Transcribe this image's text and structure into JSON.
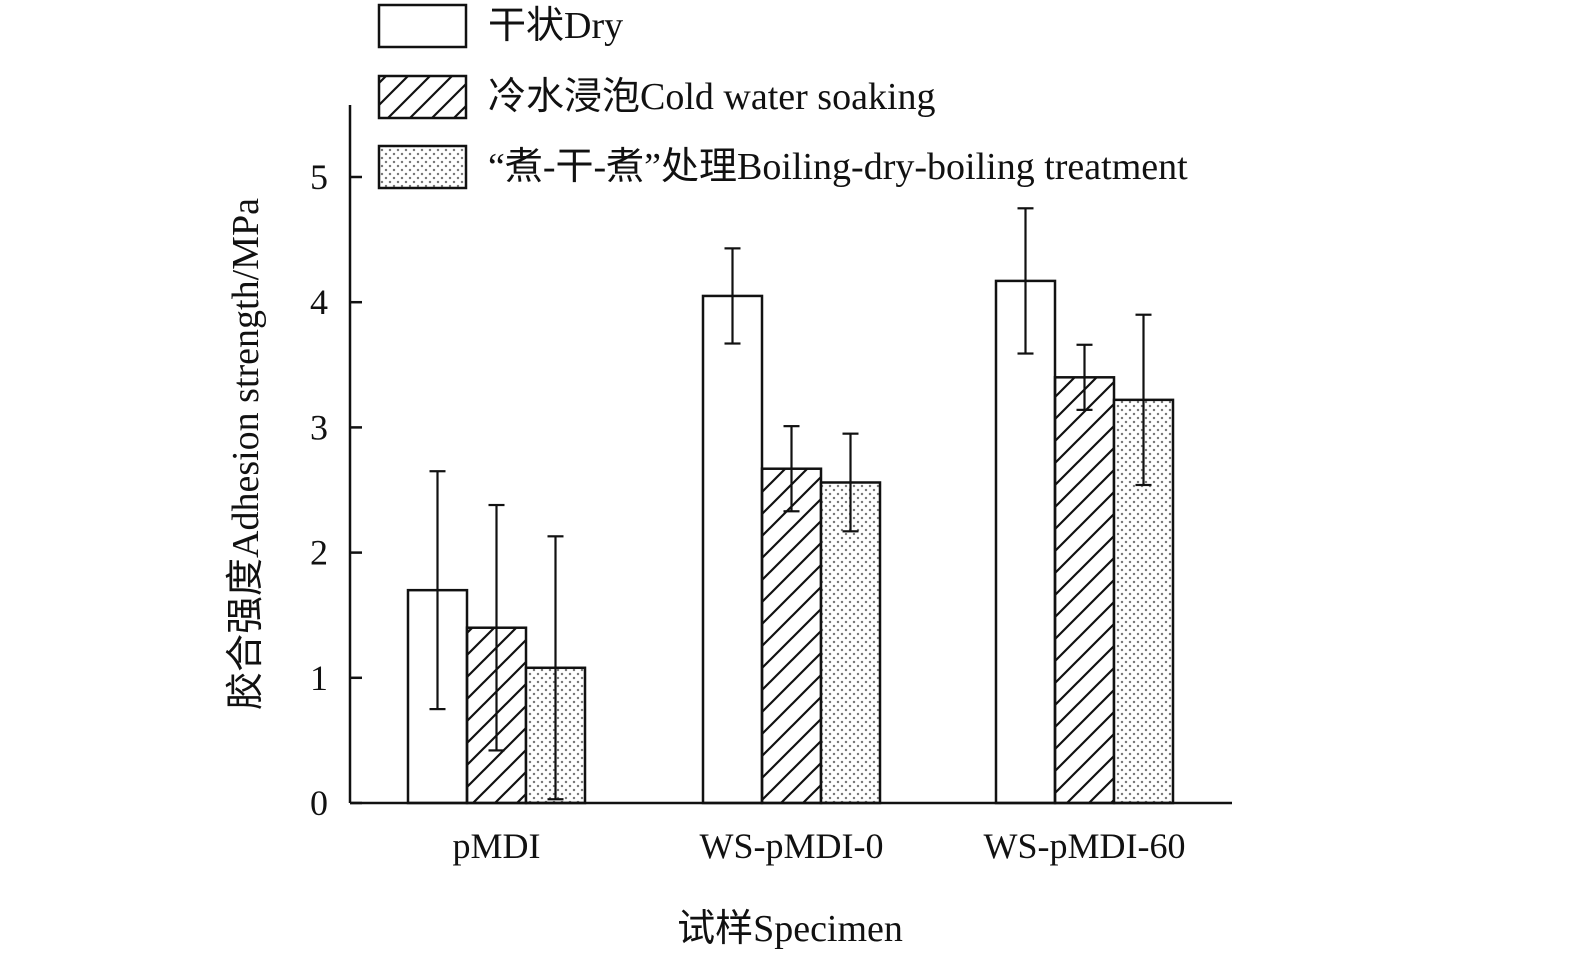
{
  "chart_data": {
    "type": "bar",
    "categories": [
      "pMDI",
      "WS-pMDI-0",
      "WS-pMDI-60"
    ],
    "series": [
      {
        "name": "干状Dry",
        "pattern": "none",
        "values": [
          1.7,
          4.05,
          4.17
        ],
        "errors": [
          0.95,
          0.38,
          0.58
        ]
      },
      {
        "name": "冷水浸泡Cold water soaking",
        "pattern": "diagonal",
        "values": [
          1.4,
          2.67,
          3.4
        ],
        "errors": [
          0.98,
          0.34,
          0.26
        ]
      },
      {
        "name": "“煮-干-煮”处理Boiling-dry-boiling treatment",
        "pattern": "dots",
        "values": [
          1.08,
          2.56,
          3.22
        ],
        "errors": [
          1.05,
          0.39,
          0.68
        ]
      }
    ],
    "xlabel": "试样Specimen",
    "ylabel": "胶合强度Adhesion strength/MPa",
    "ylim": [
      0,
      5.5
    ],
    "yticks": [
      0,
      1,
      2,
      3,
      4,
      5
    ],
    "grid": false,
    "legend_position": "top",
    "colors": {
      "bar_fill": "#ffffff",
      "stroke": "#111111"
    }
  }
}
